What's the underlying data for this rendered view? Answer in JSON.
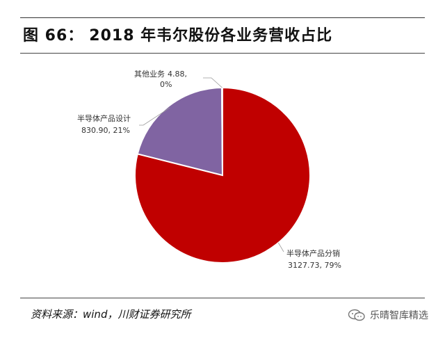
{
  "figure": {
    "label": "图 66：",
    "title": "2018 年韦尔股份各业务营收占比"
  },
  "chart_data": {
    "type": "pie",
    "title": "2018 年韦尔股份各业务营收占比",
    "slices": [
      {
        "name": "半导体产品分销",
        "value": 3127.73,
        "percent": "79%",
        "value_label": "3127.73, 79%",
        "color": "#c00000"
      },
      {
        "name": "半导体产品设计",
        "value": 830.9,
        "percent": "21%",
        "value_label": "830.90, 21%",
        "color": "#8064a2"
      },
      {
        "name": "其他业务",
        "value": 4.88,
        "percent": "0%",
        "value_label": "4.88,",
        "value_label_2": "0%",
        "color": "#9bbb59"
      }
    ],
    "slice_order_note": "",
    "legend": "none"
  },
  "footer": {
    "source": "资料来源：wind，川财证券研究所",
    "watermark": "乐晴智库精选",
    "watermark_icon": "wechat-icon"
  }
}
